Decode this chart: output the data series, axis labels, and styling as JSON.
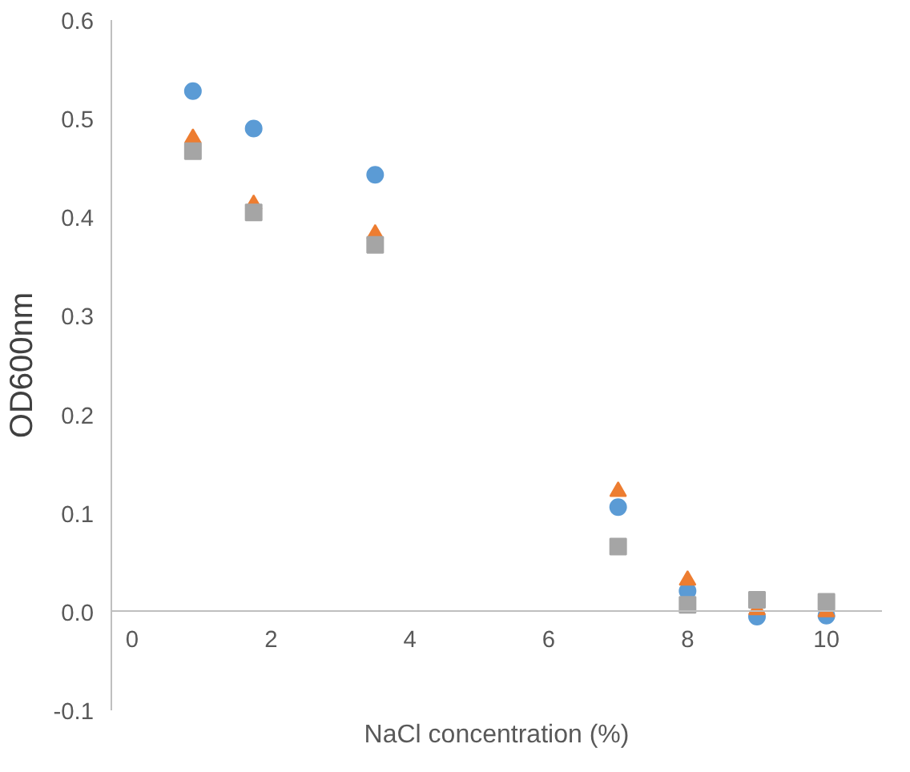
{
  "chart_data": {
    "type": "scatter",
    "xlabel": "NaCl concentration (%)",
    "ylabel": "OD600nm",
    "x": [
      0.875,
      1.75,
      3.5,
      7,
      8,
      9,
      10
    ],
    "series": [
      {
        "color": "#5b9bd5",
        "marker": "circle",
        "values": [
          0.528,
          0.49,
          0.443,
          0.106,
          0.021,
          -0.005,
          -0.004
        ]
      },
      {
        "color": "#ed7d31",
        "marker": "triangle",
        "values": [
          0.48,
          0.413,
          0.383,
          0.122,
          0.032,
          0.002,
          0.0
        ]
      },
      {
        "color": "#a5a5a5",
        "marker": "square",
        "values": [
          0.467,
          0.405,
          0.372,
          0.066,
          0.007,
          0.012,
          0.01
        ]
      }
    ],
    "xlim": [
      -0.3,
      10.8
    ],
    "ylim": [
      -0.1,
      0.6
    ],
    "xticks": [
      0,
      2,
      4,
      6,
      8,
      10
    ],
    "yticks": [
      {
        "value": -0.1,
        "label": "-0.1"
      },
      {
        "value": 0,
        "label": "0.0"
      },
      {
        "value": 0.1,
        "label": "0.1"
      },
      {
        "value": 0.2,
        "label": "0.2"
      },
      {
        "value": 0.3,
        "label": "0.3"
      },
      {
        "value": 0.4,
        "label": "0.4"
      },
      {
        "value": 0.5,
        "label": "0.5"
      },
      {
        "value": 0.6,
        "label": "0.6"
      }
    ],
    "grid": false
  }
}
